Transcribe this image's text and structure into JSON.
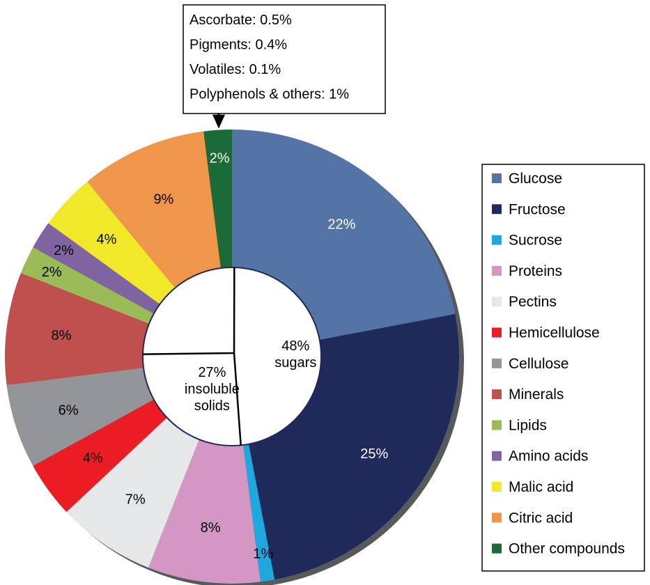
{
  "chart_data": {
    "type": "pie",
    "variant": "donut",
    "start_angle_deg": 0,
    "direction": "clockwise",
    "slices": [
      {
        "name": "Glucose",
        "value": 22,
        "label": "22%",
        "color": "#5474a8",
        "label_color": "#ffffff"
      },
      {
        "name": "Fructose",
        "value": 25,
        "label": "25%",
        "color": "#1f2a5a",
        "label_color": "#ffffff"
      },
      {
        "name": "Sucrose",
        "value": 1,
        "label": "1%",
        "color": "#1fa8de",
        "label_color": "#000000"
      },
      {
        "name": "Proteins",
        "value": 8,
        "label": "8%",
        "color": "#d497c3",
        "label_color": "#000000"
      },
      {
        "name": "Pectins",
        "value": 7,
        "label": "7%",
        "color": "#e6e7e8",
        "label_color": "#000000"
      },
      {
        "name": "Hemicellulose",
        "value": 4,
        "label": "4%",
        "color": "#ec1c24",
        "label_color": "#000000"
      },
      {
        "name": "Cellulose",
        "value": 6,
        "label": "6%",
        "color": "#939598",
        "label_color": "#000000"
      },
      {
        "name": "Minerals",
        "value": 8,
        "label": "8%",
        "color": "#c0504d",
        "label_color": "#000000"
      },
      {
        "name": "Lipids",
        "value": 2,
        "label": "2%",
        "color": "#9bbb59",
        "label_color": "#000000"
      },
      {
        "name": "Amino acids",
        "value": 2,
        "label": "2%",
        "color": "#8064a2",
        "label_color": "#000000"
      },
      {
        "name": "Malic acid",
        "value": 4,
        "label": "4%",
        "color": "#f0e828",
        "label_color": "#000000"
      },
      {
        "name": "Citric acid",
        "value": 9,
        "label": "9%",
        "color": "#f0964a",
        "label_color": "#000000"
      },
      {
        "name": "Other compounds",
        "value": 2,
        "label": "2%",
        "color": "#1a6b38",
        "label_color": "#ffffff"
      }
    ],
    "inner_groups": [
      {
        "lines": [
          "48%",
          "sugars"
        ],
        "start_value": 0,
        "end_value": 48
      },
      {
        "lines": [
          "27%",
          "insoluble",
          "solids"
        ],
        "start_value": 48,
        "end_value": 75
      }
    ],
    "callout": {
      "target": "Other compounds",
      "lines": [
        "Ascorbate: 0.5%",
        "Pigments: 0.4%",
        "Volatiles: 0.1%",
        "Polyphenols & others: 1%"
      ]
    },
    "legend": {
      "placement": "right",
      "entries": [
        "Glucose",
        "Fructose",
        "Sucrose",
        "Proteins",
        "Pectins",
        "Hemicellulose",
        "Cellulose",
        "Minerals",
        "Lipids",
        "Amino acids",
        "Malic acid",
        "Citric acid",
        "Other compounds"
      ]
    },
    "title": ""
  }
}
